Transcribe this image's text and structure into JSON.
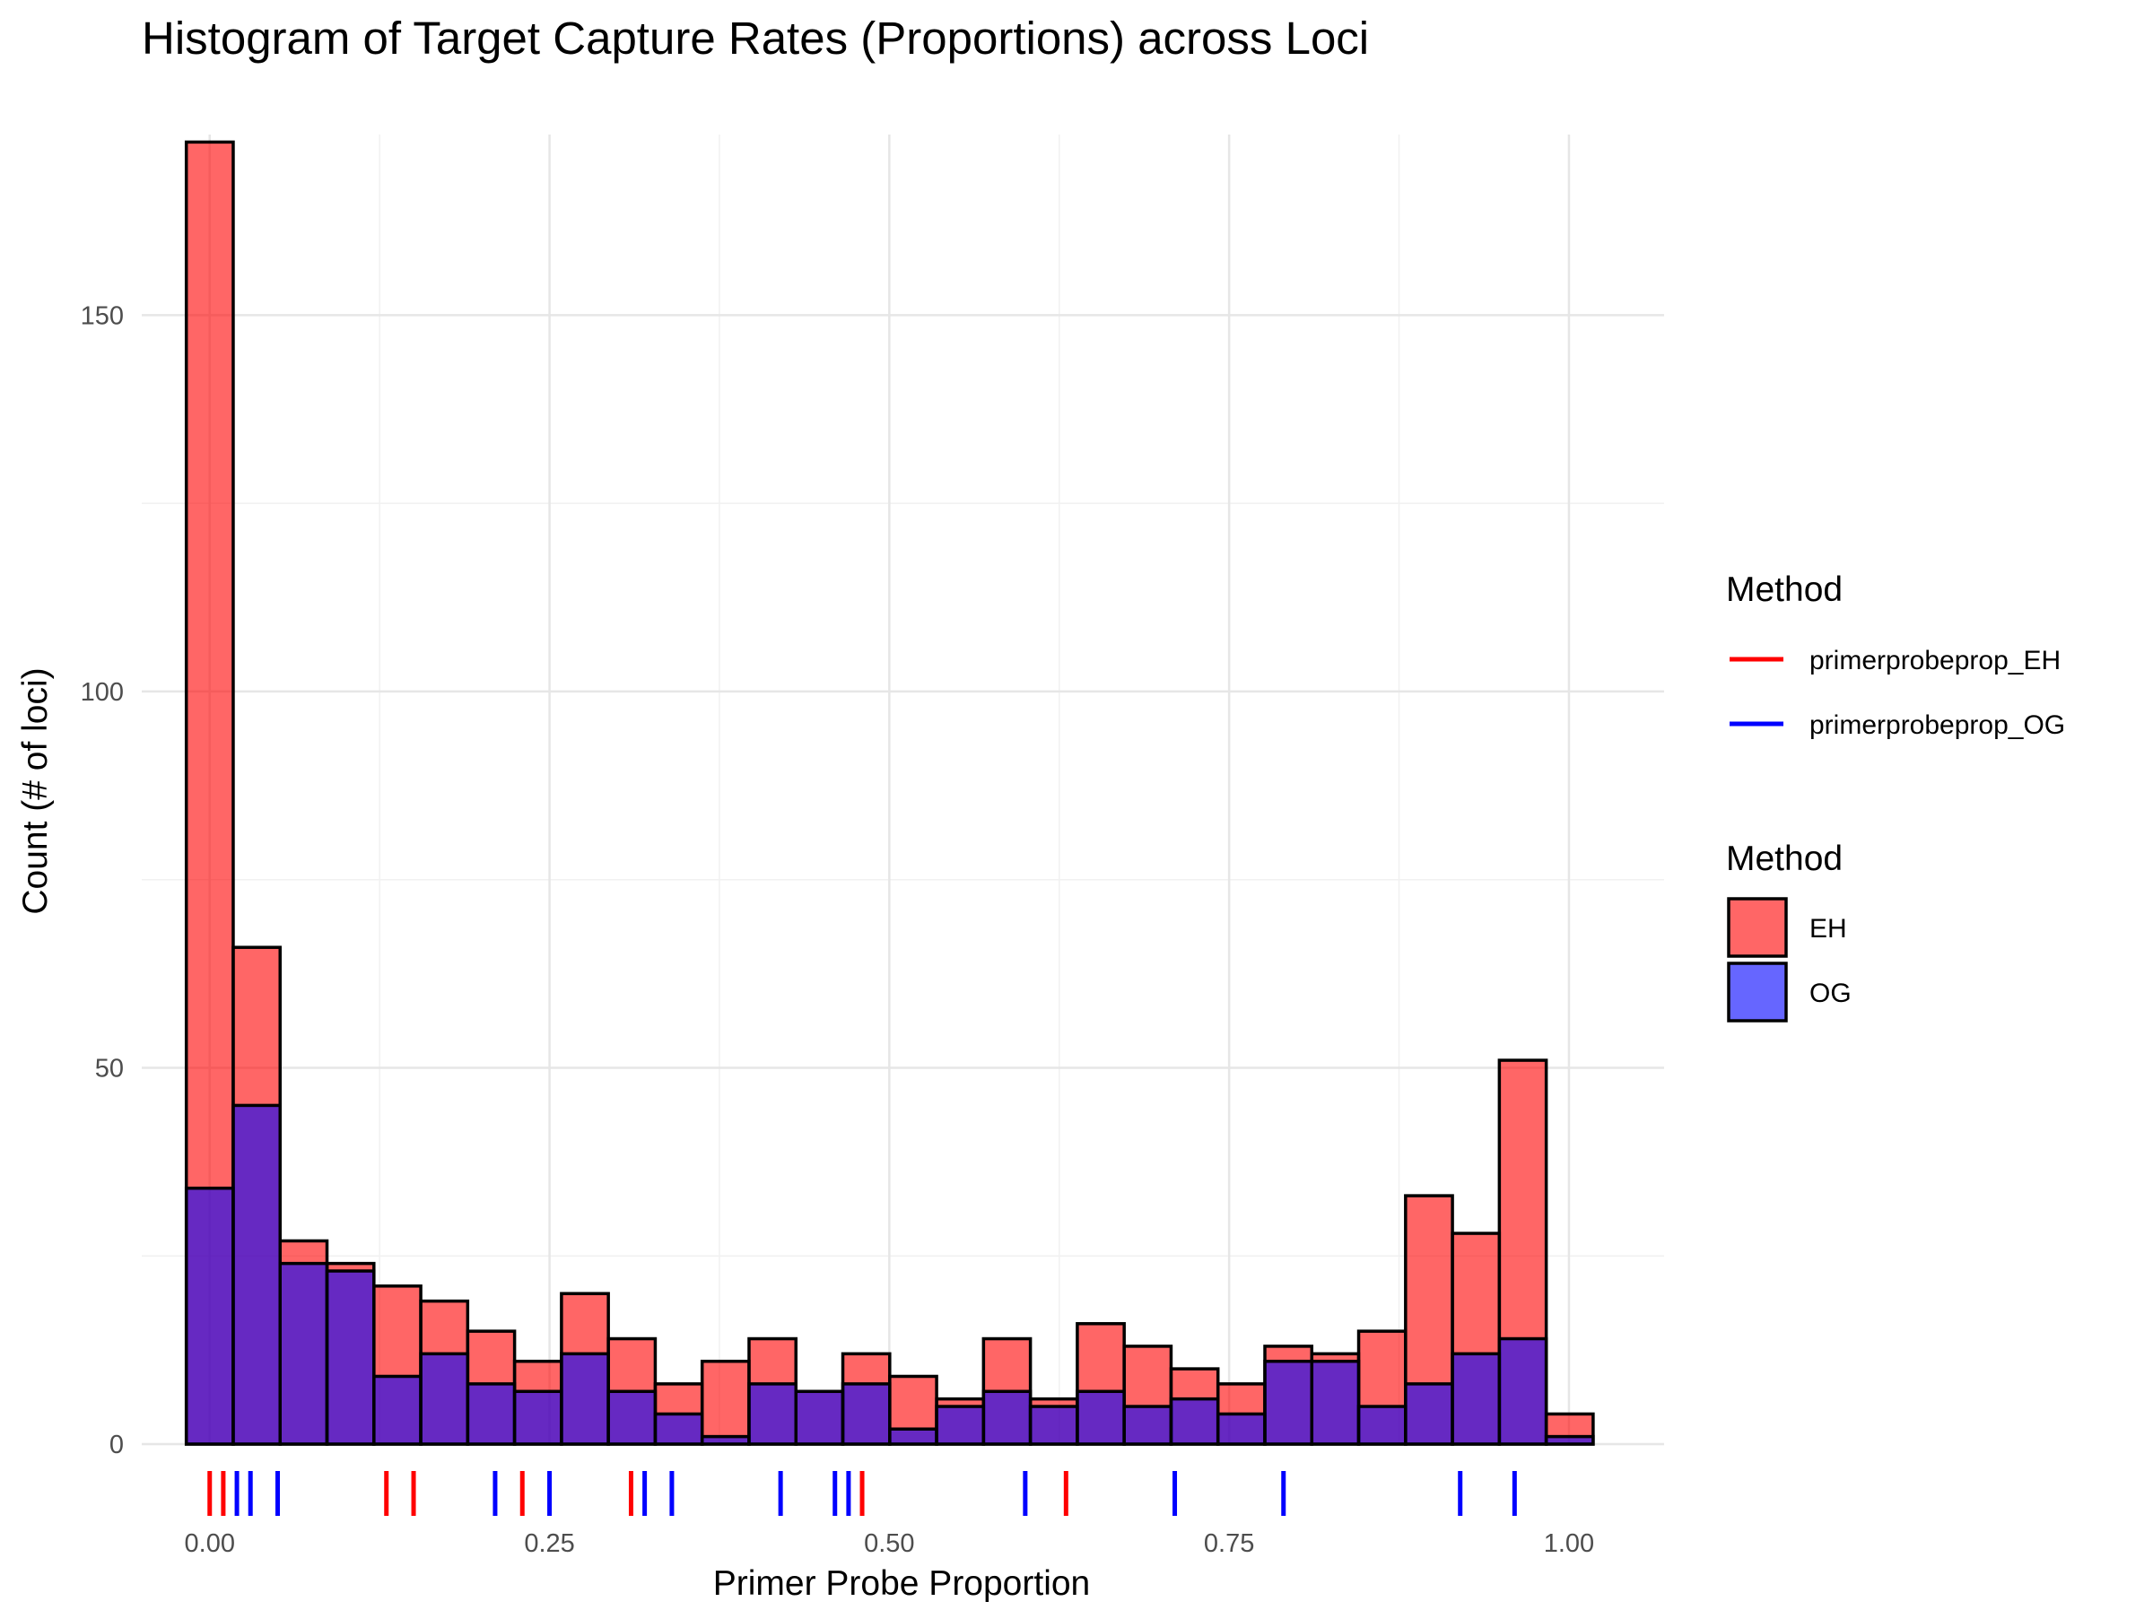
{
  "chart_data": {
    "type": "bar",
    "title": "Histogram of Target Capture Rates (Proportions) across Loci",
    "xlabel": "Primer Probe Proportion",
    "ylabel": "Count (# of loci)",
    "xlim": [
      -0.05,
      1.07
    ],
    "ylim": [
      0,
      174
    ],
    "x_ticks": [
      {
        "value": 0.0,
        "label": "0.00"
      },
      {
        "value": 0.25,
        "label": "0.25"
      },
      {
        "value": 0.5,
        "label": "0.50"
      },
      {
        "value": 0.75,
        "label": "0.75"
      },
      {
        "value": 1.0,
        "label": "1.00"
      }
    ],
    "y_ticks": [
      {
        "value": 0,
        "label": "0"
      },
      {
        "value": 50,
        "label": "50"
      },
      {
        "value": 100,
        "label": "100"
      },
      {
        "value": 150,
        "label": "150"
      }
    ],
    "grid": true,
    "legend_position": "right",
    "bin_start": -0.0172,
    "bin_width": 0.0345,
    "series": [
      {
        "name": "EH",
        "color": "#FF0000",
        "values": [
          173,
          66,
          27,
          24,
          21,
          19,
          15,
          11,
          20,
          14,
          8,
          11,
          14,
          7,
          12,
          9,
          6,
          14,
          6,
          16,
          13,
          10,
          8,
          13,
          12,
          15,
          33,
          28,
          51,
          4
        ]
      },
      {
        "name": "OG",
        "color": "#0000FF",
        "values": [
          34,
          45,
          24,
          23,
          9,
          12,
          8,
          7,
          12,
          7,
          4,
          1,
          8,
          7,
          8,
          2,
          5,
          7,
          5,
          7,
          5,
          6,
          4,
          11,
          11,
          5,
          8,
          12,
          14,
          1
        ]
      }
    ],
    "overlap_color": "#6A2FC6",
    "rug": [
      {
        "name": "primerprobeprop_EH",
        "color": "#FF0000",
        "x": [
          0.0,
          0.01,
          0.13,
          0.15,
          0.23,
          0.31,
          0.48,
          0.63
        ]
      },
      {
        "name": "primerprobeprop_OG",
        "color": "#0000FF",
        "x": [
          0.02,
          0.03,
          0.05,
          0.21,
          0.25,
          0.32,
          0.34,
          0.42,
          0.46,
          0.47,
          0.6,
          0.71,
          0.79,
          0.92,
          0.96
        ]
      }
    ],
    "legends": [
      {
        "title": "Method",
        "kind": "line",
        "entries": [
          {
            "label": "primerprobeprop_EH",
            "color": "#FF0000"
          },
          {
            "label": "primerprobeprop_OG",
            "color": "#0000FF"
          }
        ]
      },
      {
        "title": "Method",
        "kind": "fill",
        "entries": [
          {
            "label": "EH",
            "color": "#FF0000"
          },
          {
            "label": "OG",
            "color": "#0000FF"
          }
        ]
      }
    ]
  }
}
